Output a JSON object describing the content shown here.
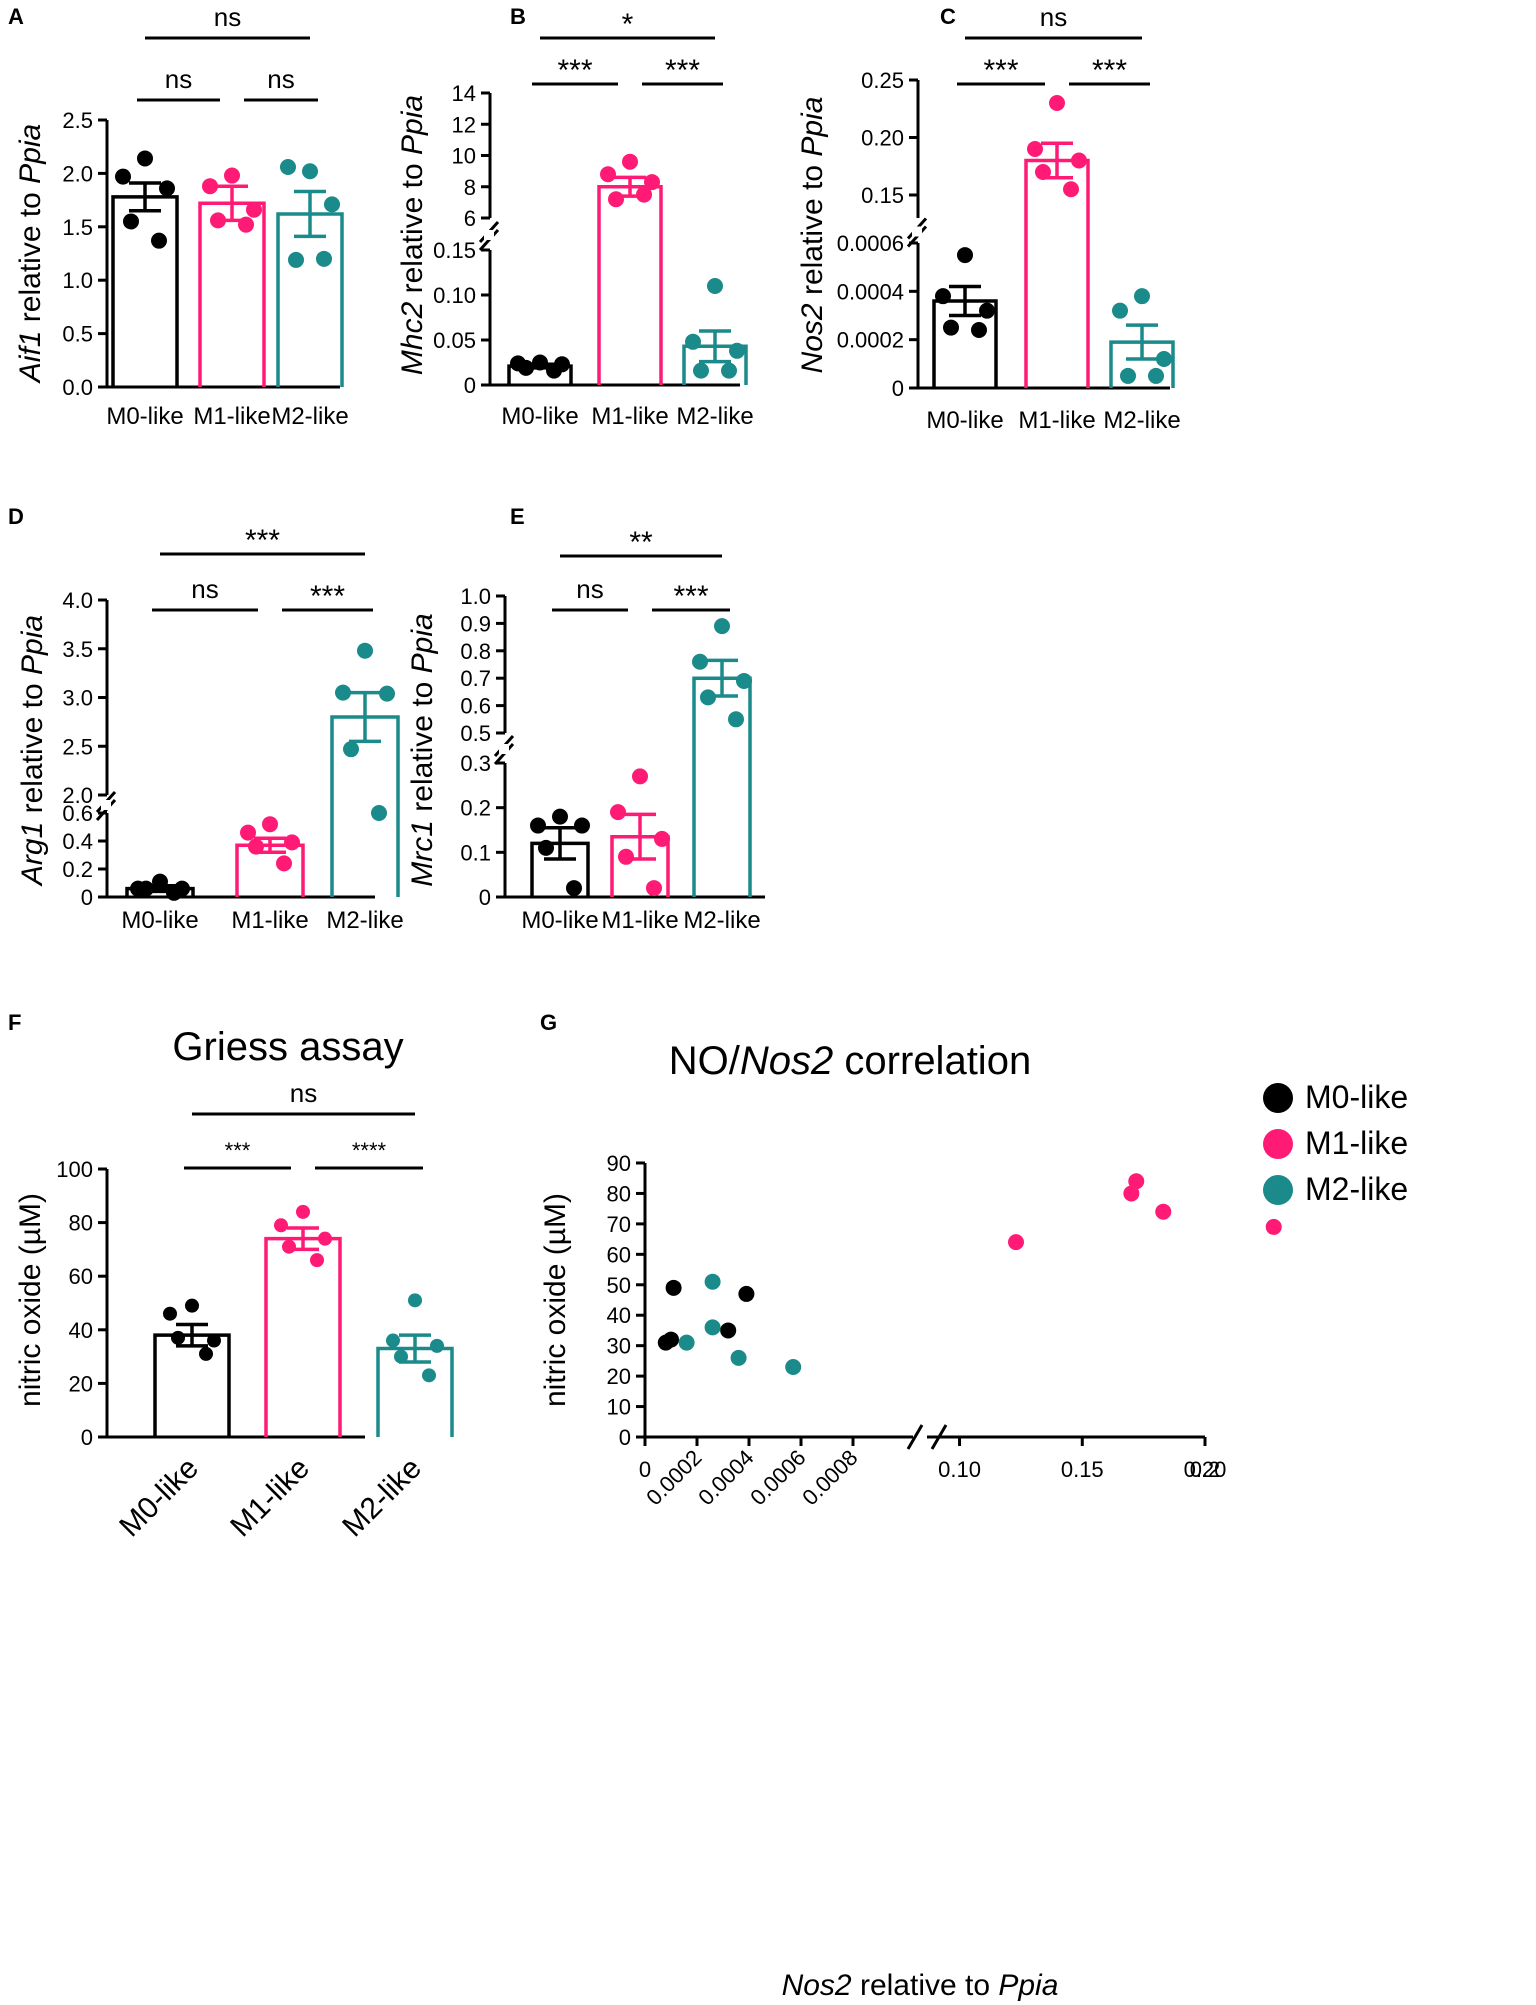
{
  "colors": {
    "M0": "#000000",
    "M1": "#ff1a75",
    "M2": "#1a8a8a"
  },
  "groups": [
    "M0-like",
    "M1-like",
    "M2-like"
  ],
  "chart_data": [
    {
      "panel": "A",
      "type": "bar",
      "ylabel_gene": "Aif1",
      "ylabel_rest": " relative to ",
      "ylabel_ref": "Ppia",
      "categories": [
        "M0-like",
        "M1-like",
        "M2-like"
      ],
      "ylim": [
        0,
        2.5
      ],
      "yticks": [
        "0.0",
        "0.5",
        "1.0",
        "1.5",
        "2.0",
        "2.5"
      ],
      "means": [
        1.78,
        1.72,
        1.62
      ],
      "sem": [
        0.13,
        0.16,
        0.21
      ],
      "points": [
        [
          2.14,
          1.97,
          1.86,
          1.55,
          1.37
        ],
        [
          1.98,
          1.88,
          1.66,
          1.56,
          1.52
        ],
        [
          2.02,
          2.06,
          1.71,
          1.19,
          1.2
        ]
      ],
      "significance": [
        {
          "pair": [
            0,
            2
          ],
          "label": "ns"
        },
        {
          "pair": [
            0,
            1
          ],
          "label": "ns"
        },
        {
          "pair": [
            1,
            2
          ],
          "label": "ns"
        }
      ]
    },
    {
      "panel": "B",
      "type": "bar",
      "broken_axis": true,
      "ylabel_gene": "Mhc2",
      "ylabel_rest": " relative to ",
      "ylabel_ref": "Ppia",
      "categories": [
        "M0-like",
        "M1-like",
        "M2-like"
      ],
      "lower_ylim": [
        0,
        0.15
      ],
      "upper_ylim": [
        6,
        14
      ],
      "lower_yticks": [
        "0",
        "0.05",
        "0.10",
        "0.15"
      ],
      "upper_yticks": [
        "6",
        "8",
        "10",
        "12",
        "14"
      ],
      "means": [
        0.021,
        8.0,
        0.043
      ],
      "sem": [
        0.002,
        0.6,
        0.017
      ],
      "points": [
        [
          0.025,
          0.024,
          0.023,
          0.019,
          0.016
        ],
        [
          9.6,
          8.8,
          8.3,
          7.2,
          7.5
        ],
        [
          0.11,
          0.048,
          0.038,
          0.016,
          0.016
        ]
      ],
      "significance": [
        {
          "pair": [
            0,
            2
          ],
          "label": "*"
        },
        {
          "pair": [
            0,
            1
          ],
          "label": "***"
        },
        {
          "pair": [
            1,
            2
          ],
          "label": "***"
        }
      ]
    },
    {
      "panel": "C",
      "type": "bar",
      "broken_axis": true,
      "ylabel_gene": "Nos2",
      "ylabel_rest": " relative to ",
      "ylabel_ref": "Ppia",
      "categories": [
        "M0-like",
        "M1-like",
        "M2-like"
      ],
      "lower_ylim": [
        0,
        0.0006
      ],
      "upper_ylim": [
        0.13,
        0.25
      ],
      "lower_yticks": [
        "0",
        "0.0002",
        "0.0004",
        "0.0006"
      ],
      "upper_yticks": [
        "0.15",
        "0.20",
        "0.25"
      ],
      "means": [
        0.00036,
        0.18,
        0.00019
      ],
      "sem": [
        6e-05,
        0.015,
        7e-05
      ],
      "points": [
        [
          0.00055,
          0.00038,
          0.00032,
          0.00025,
          0.00024
        ],
        [
          0.23,
          0.19,
          0.18,
          0.17,
          0.155
        ],
        [
          0.00038,
          0.00032,
          0.00012,
          5e-05,
          5e-05
        ]
      ],
      "significance": [
        {
          "pair": [
            0,
            2
          ],
          "label": "ns"
        },
        {
          "pair": [
            0,
            1
          ],
          "label": "***"
        },
        {
          "pair": [
            1,
            2
          ],
          "label": "***"
        }
      ]
    },
    {
      "panel": "D",
      "type": "bar",
      "broken_axis": true,
      "ylabel_gene": "Arg1",
      "ylabel_rest": " relative to ",
      "ylabel_ref": "Ppia",
      "categories": [
        "M0-like",
        "M1-like",
        "M2-like"
      ],
      "lower_ylim": [
        0,
        0.6
      ],
      "upper_ylim": [
        2.0,
        4.0
      ],
      "lower_yticks": [
        "0",
        "0.2",
        "0.4",
        "0.6"
      ],
      "upper_yticks": [
        "2.0",
        "2.5",
        "3.0",
        "3.5",
        "4.0"
      ],
      "means": [
        0.06,
        0.37,
        2.8
      ],
      "sem": [
        0.02,
        0.05,
        0.25
      ],
      "points": [
        [
          0.11,
          0.06,
          0.06,
          0.06,
          0.03
        ],
        [
          0.52,
          0.46,
          0.39,
          0.36,
          0.24
        ],
        [
          3.48,
          3.05,
          3.04,
          2.47,
          1.94
        ]
      ],
      "significance": [
        {
          "pair": [
            0,
            2
          ],
          "label": "***"
        },
        {
          "pair": [
            0,
            1
          ],
          "label": "ns"
        },
        {
          "pair": [
            1,
            2
          ],
          "label": "***"
        }
      ]
    },
    {
      "panel": "E",
      "type": "bar",
      "broken_axis": true,
      "ylabel_gene": "Mrc1",
      "ylabel_rest": " relative to ",
      "ylabel_ref": "Ppia",
      "categories": [
        "M0-like",
        "M1-like",
        "M2-like"
      ],
      "lower_ylim": [
        0,
        0.3
      ],
      "upper_ylim": [
        0.5,
        1.0
      ],
      "lower_yticks": [
        "0",
        "0.1",
        "0.2",
        "0.3"
      ],
      "upper_yticks": [
        "0.5",
        "0.6",
        "0.7",
        "0.8",
        "0.9",
        "1.0"
      ],
      "means": [
        0.12,
        0.135,
        0.7
      ],
      "sem": [
        0.035,
        0.05,
        0.065
      ],
      "points": [
        [
          0.18,
          0.16,
          0.16,
          0.11,
          0.02
        ],
        [
          0.27,
          0.19,
          0.13,
          0.09,
          0.02
        ],
        [
          0.89,
          0.76,
          0.69,
          0.63,
          0.55
        ]
      ],
      "significance": [
        {
          "pair": [
            0,
            2
          ],
          "label": "**"
        },
        {
          "pair": [
            0,
            1
          ],
          "label": "ns"
        },
        {
          "pair": [
            1,
            2
          ],
          "label": "***"
        }
      ]
    },
    {
      "panel": "F",
      "type": "bar",
      "title": "Griess assay",
      "ylabel": "nitric oxide (µM)",
      "categories": [
        "M0-like",
        "M1-like",
        "M2-like"
      ],
      "ylim": [
        0,
        100
      ],
      "yticks": [
        "0",
        "20",
        "40",
        "60",
        "80",
        "100"
      ],
      "means": [
        38,
        74,
        33
      ],
      "sem": [
        4,
        4,
        5
      ],
      "points": [
        [
          49,
          46,
          36,
          37,
          31
        ],
        [
          84,
          79,
          74,
          71,
          66
        ],
        [
          51,
          36,
          34,
          30,
          23
        ]
      ],
      "significance": [
        {
          "pair": [
            0,
            2
          ],
          "label": "ns"
        },
        {
          "pair": [
            0,
            1
          ],
          "label": "***"
        },
        {
          "pair": [
            1,
            2
          ],
          "label": "****"
        }
      ]
    },
    {
      "panel": "G",
      "type": "scatter",
      "title_prefix": "NO/",
      "title_gene": "Nos2",
      "title_suffix": " correlation",
      "xlabel_gene": "Nos2",
      "xlabel_rest": " relative to ",
      "xlabel_ref": "Ppia",
      "ylabel": "nitric oxide (µM)",
      "ylim": [
        0,
        90
      ],
      "yticks": [
        "0",
        "10",
        "20",
        "30",
        "40",
        "50",
        "60",
        "70",
        "80",
        "90"
      ],
      "x_lower_ticks": [
        "0",
        "0.0002",
        "0.0004",
        "0.0006",
        "0.0008"
      ],
      "x_upper_ticks": [
        "0.10",
        "0.15",
        "0.20",
        "0.2"
      ],
      "x_lower_range": [
        0,
        0.001
      ],
      "x_upper_range": [
        0.09,
        0.2
      ],
      "legend": [
        "M0-like",
        "M1-like",
        "M2-like"
      ],
      "series": [
        {
          "name": "M0-like",
          "x": [
            0.00011,
            8e-05,
            0.0001,
            0.00039,
            0.00032
          ],
          "y": [
            49,
            31,
            32,
            47,
            35
          ]
        },
        {
          "name": "M1-like",
          "x": [
            0.123,
            0.17,
            0.172,
            0.183,
            0.228
          ],
          "y": [
            64,
            80,
            84,
            74,
            69
          ]
        },
        {
          "name": "M2-like",
          "x": [
            0.00026,
            0.00026,
            0.00016,
            0.00036,
            0.00057
          ],
          "y": [
            51,
            36,
            31,
            26,
            23
          ]
        }
      ]
    }
  ]
}
